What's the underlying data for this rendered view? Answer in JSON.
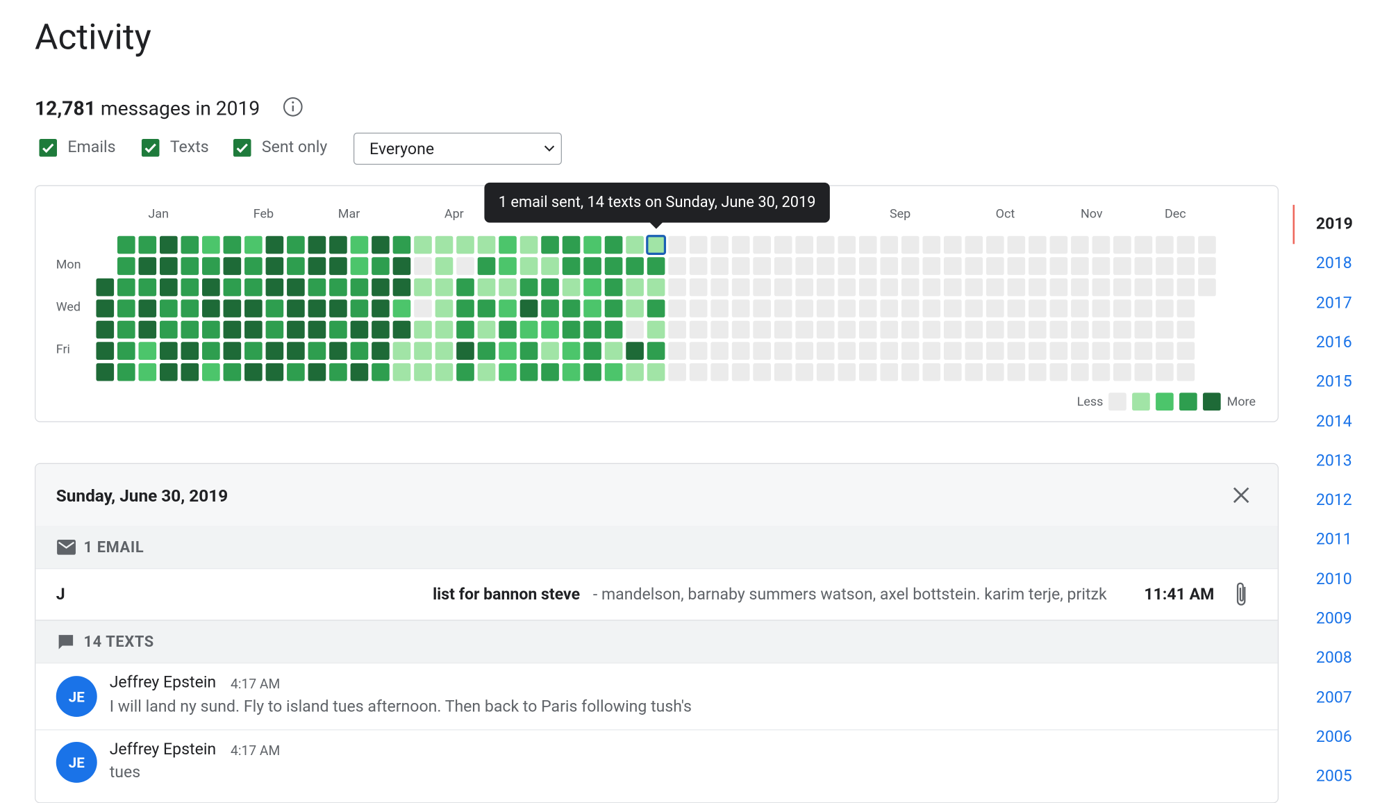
{
  "header": {
    "title": "Activity",
    "count": "12,781",
    "count_suffix": "messages in 2019"
  },
  "filters": {
    "checkboxes": [
      "Emails",
      "Texts",
      "Sent only"
    ],
    "select": "Everyone"
  },
  "heatmap": {
    "months": [
      "Jan",
      "Feb",
      "Mar",
      "Apr",
      null,
      null,
      null,
      null,
      "Sep",
      "Oct",
      "Nov",
      "Dec"
    ],
    "day_labels": [
      "Mon",
      "Wed",
      "Fri"
    ],
    "colors": [
      "#ebebeb",
      "#a1e4a6",
      "#4cc56b",
      "#2e9e4f",
      "#1e6a37"
    ],
    "levels": [
      [
        null,
        3,
        3,
        4,
        3,
        2,
        3,
        2,
        4,
        3,
        4,
        4,
        2,
        4,
        3,
        1,
        1,
        1,
        1,
        2,
        1,
        3,
        3,
        2,
        3,
        1,
        1,
        0,
        0,
        0,
        0,
        0,
        0,
        0,
        0,
        0,
        0,
        0,
        0,
        0,
        0,
        0,
        0,
        0,
        0,
        0,
        0,
        0,
        0,
        0,
        0,
        0,
        0
      ],
      [
        null,
        3,
        4,
        4,
        3,
        3,
        4,
        3,
        4,
        3,
        4,
        4,
        2,
        3,
        4,
        0,
        1,
        0,
        3,
        2,
        1,
        1,
        3,
        3,
        3,
        3,
        3,
        0,
        0,
        0,
        0,
        0,
        0,
        0,
        0,
        0,
        0,
        0,
        0,
        0,
        0,
        0,
        0,
        0,
        0,
        0,
        0,
        0,
        0,
        0,
        0,
        0,
        0
      ],
      [
        4,
        3,
        3,
        4,
        3,
        4,
        3,
        3,
        4,
        4,
        3,
        3,
        3,
        4,
        4,
        1,
        1,
        3,
        1,
        1,
        3,
        3,
        1,
        2,
        3,
        1,
        1,
        0,
        0,
        0,
        0,
        0,
        0,
        0,
        0,
        0,
        0,
        0,
        0,
        0,
        0,
        0,
        0,
        0,
        0,
        0,
        0,
        0,
        0,
        0,
        0,
        0,
        0
      ],
      [
        4,
        3,
        4,
        3,
        3,
        4,
        4,
        4,
        3,
        4,
        4,
        4,
        3,
        4,
        2,
        0,
        1,
        3,
        3,
        2,
        4,
        3,
        3,
        2,
        3,
        1,
        3,
        0,
        0,
        0,
        0,
        0,
        0,
        0,
        0,
        0,
        0,
        0,
        0,
        0,
        0,
        0,
        0,
        0,
        0,
        0,
        0,
        0,
        0,
        0,
        0,
        0,
        null
      ],
      [
        4,
        3,
        4,
        3,
        3,
        3,
        4,
        4,
        3,
        4,
        4,
        3,
        4,
        4,
        4,
        1,
        1,
        3,
        1,
        3,
        2,
        2,
        3,
        3,
        3,
        0,
        1,
        0,
        0,
        0,
        0,
        0,
        0,
        0,
        0,
        0,
        0,
        0,
        0,
        0,
        0,
        0,
        0,
        0,
        0,
        0,
        0,
        0,
        0,
        0,
        0,
        0,
        null
      ],
      [
        4,
        3,
        2,
        4,
        4,
        3,
        4,
        3,
        4,
        4,
        3,
        4,
        3,
        4,
        1,
        1,
        1,
        4,
        3,
        2,
        3,
        1,
        2,
        3,
        1,
        4,
        3,
        0,
        0,
        0,
        0,
        0,
        0,
        0,
        0,
        0,
        0,
        0,
        0,
        0,
        0,
        0,
        0,
        0,
        0,
        0,
        0,
        0,
        0,
        0,
        0,
        0,
        null
      ],
      [
        4,
        3,
        2,
        4,
        4,
        2,
        3,
        4,
        4,
        3,
        4,
        3,
        4,
        3,
        1,
        1,
        1,
        3,
        1,
        2,
        3,
        3,
        2,
        3,
        2,
        1,
        1,
        0,
        0,
        0,
        0,
        0,
        0,
        0,
        0,
        0,
        0,
        0,
        0,
        0,
        0,
        0,
        0,
        0,
        0,
        0,
        0,
        0,
        0,
        0,
        0,
        0,
        null
      ]
    ],
    "selected": [
      0,
      26
    ],
    "tooltip": "1 email sent, 14 texts on Sunday, June 30, 2019",
    "legend": {
      "less": "Less",
      "more": "More",
      "levels": [
        0,
        1,
        2,
        3,
        4
      ]
    }
  },
  "details": {
    "date": "Sunday, June 30, 2019",
    "emails": {
      "heading": "1 EMAIL",
      "items": [
        {
          "sender": "J",
          "subject": "list for bannon steve",
          "snippet": "- mandelson, barnaby summers watson, axel bottstein. karim terje, pritzk",
          "time": "11:41 AM"
        }
      ]
    },
    "texts": {
      "heading": "14 TEXTS",
      "items": [
        {
          "initials": "JE",
          "sender": "Jeffrey Epstein",
          "time": "4:17 AM",
          "text": "I will land ny sund. Fly to island tues afternoon. Then back to Paris following tush's"
        },
        {
          "initials": "JE",
          "sender": "Jeffrey Epstein",
          "time": "4:17 AM",
          "text": "tues"
        }
      ]
    }
  },
  "years": {
    "items": [
      2019,
      2018,
      2017,
      2016,
      2015,
      2014,
      2013,
      2012,
      2011,
      2010,
      2009,
      2008,
      2007,
      2006,
      2005
    ],
    "selected": 0
  }
}
